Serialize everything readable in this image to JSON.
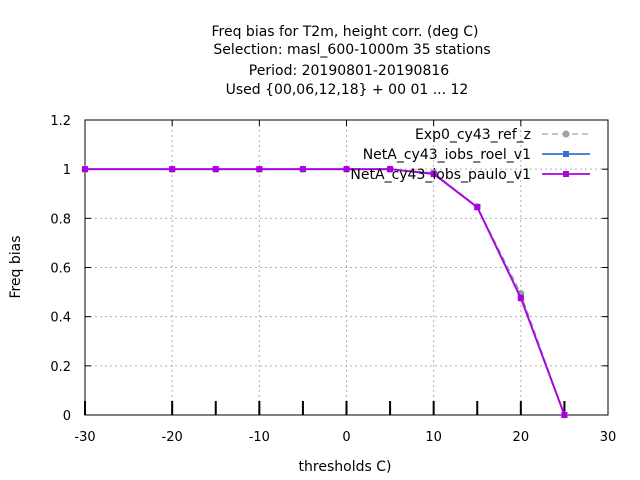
{
  "chart_data": {
    "type": "line",
    "title_lines": [
      "Freq bias  for T2m, height corr. (deg C)",
      "Selection: masl_600-1000m     35 stations",
      "Period: 20190801-20190816",
      "Used {00,06,12,18} + 00 01 ... 12"
    ],
    "xlabel": "thresholds C)",
    "ylabel": "Freq bias",
    "xlim": [
      -30,
      30
    ],
    "ylim": [
      0,
      1.2
    ],
    "x_ticks": [
      -30,
      -20,
      -10,
      0,
      10,
      20,
      30
    ],
    "y_ticks": [
      0,
      0.2,
      0.4,
      0.6,
      0.8,
      1,
      1.2
    ],
    "x_tick_labels": [
      "-30",
      "-20",
      "-10",
      "0",
      "10",
      "20",
      "30"
    ],
    "y_tick_labels": [
      "0",
      "0.2",
      "0.4",
      "0.6",
      "0.8",
      "1",
      "1.2"
    ],
    "grid": true,
    "legend_position": "top-right",
    "x": [
      -30,
      -20,
      -15,
      -10,
      -5,
      0,
      5,
      10,
      15,
      20,
      25
    ],
    "series": [
      {
        "name": "Exp0_cy43_ref_z",
        "color": "#a0a0a0",
        "dashed": true,
        "marker": "circle",
        "values": [
          1.0,
          1.0,
          1.0,
          1.0,
          1.0,
          1.0,
          1.0,
          0.985,
          0.848,
          0.495,
          0.0
        ]
      },
      {
        "name": "NetA_cy43_iobs_roel_v1",
        "color": "#3a6fd8",
        "dashed": false,
        "marker": "square",
        "values": [
          1.0,
          1.0,
          1.0,
          1.0,
          1.0,
          1.0,
          1.0,
          0.982,
          0.846,
          0.478,
          0.0
        ]
      },
      {
        "name": "NetA_cy43_iobs_paulo_v1",
        "color": "#b000e0",
        "dashed": false,
        "marker": "square",
        "values": [
          1.0,
          1.0,
          1.0,
          1.0,
          1.0,
          1.0,
          1.0,
          0.98,
          0.845,
          0.475,
          0.0
        ]
      }
    ],
    "observation_count_ticks_x": [
      -30,
      -20,
      -15,
      -10,
      -5,
      0,
      5,
      10,
      15,
      20,
      25
    ]
  }
}
